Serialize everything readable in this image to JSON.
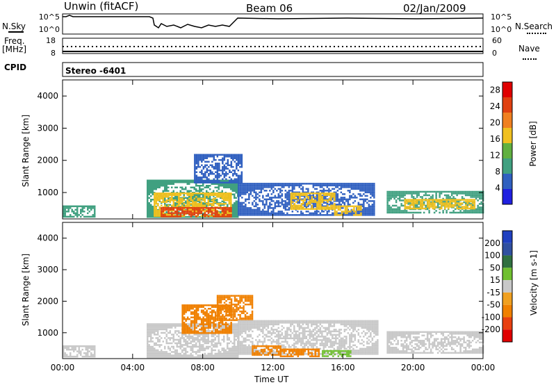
{
  "header": {
    "station": "Unwin (fitACF)",
    "beam": "Beam 06",
    "date": "02/Jan/2009"
  },
  "top_panel": {
    "nsky_label": "N.Sky",
    "nsearch_label": "N.Search",
    "freq_label": "Freq.",
    "freq_unit": "[MHz]",
    "nave_label": "Nave",
    "cpid_label": "CPID",
    "cpid_value": "Stereo -6401",
    "left_ticks_noise": [
      "10^5",
      "10^0"
    ],
    "right_ticks_noise": [
      "10^5",
      "10^0"
    ],
    "left_ticks_freq": [
      "18",
      "8"
    ],
    "right_ticks_nave": [
      "60",
      "0"
    ]
  },
  "colors": {
    "power_scale": [
      "#2020e0",
      "#3060c0",
      "#40a080",
      "#60b040",
      "#f0c020",
      "#f08020",
      "#e04010",
      "#e00000"
    ],
    "velocity_scale": [
      "#2040c0",
      "#3050a0",
      "#307040",
      "#70c030",
      "#c8c8c8",
      "#f0a020",
      "#f08000",
      "#e84010",
      "#e00000"
    ]
  },
  "chart_data": [
    {
      "type": "heatmap",
      "title": "",
      "xlabel": "",
      "ylabel": "Slant Range [km]",
      "xlim": [
        "00:00",
        "00:00"
      ],
      "ylim": [
        180,
        4500
      ],
      "yticks": [
        1000,
        2000,
        3000,
        4000
      ],
      "colorbar_label": "Power [dB]",
      "colorbar_ticks": [
        4,
        8,
        12,
        16,
        20,
        24,
        28
      ],
      "colorbar_range": [
        0,
        30
      ],
      "regions": [
        {
          "t0": 0.0,
          "t1": 1.8,
          "r0": 250,
          "r1": 600,
          "value": 10
        },
        {
          "t0": 4.8,
          "t1": 10.0,
          "r0": 250,
          "r1": 1400,
          "value": 8
        },
        {
          "t0": 5.2,
          "t1": 9.6,
          "r0": 250,
          "r1": 1000,
          "value": 16
        },
        {
          "t0": 5.6,
          "t1": 9.6,
          "r0": 250,
          "r1": 550,
          "value": 26
        },
        {
          "t0": 7.5,
          "t1": 10.2,
          "r0": 1300,
          "r1": 2200,
          "value": 6
        },
        {
          "t0": 10.0,
          "t1": 17.8,
          "r0": 300,
          "r1": 1300,
          "value": 7
        },
        {
          "t0": 13.0,
          "t1": 15.5,
          "r0": 500,
          "r1": 1000,
          "value": 16
        },
        {
          "t0": 15.5,
          "t1": 17.0,
          "r0": 300,
          "r1": 600,
          "value": 18
        },
        {
          "t0": 18.5,
          "t1": 24.0,
          "r0": 350,
          "r1": 1050,
          "value": 9
        },
        {
          "t0": 19.5,
          "t1": 23.5,
          "r0": 500,
          "r1": 800,
          "value": 18
        }
      ]
    },
    {
      "type": "heatmap",
      "title": "",
      "xlabel": "Time UT",
      "ylabel": "Slant Range [km]",
      "xticks": [
        "00:00",
        "04:00",
        "08:00",
        "12:00",
        "16:00",
        "20:00",
        "00:00"
      ],
      "ylim": [
        180,
        4500
      ],
      "yticks": [
        1000,
        2000,
        3000,
        4000
      ],
      "colorbar_label": "Velocity [m s-1]",
      "colorbar_ticks": [
        "200",
        "100",
        "50",
        "15",
        "-15",
        "-50",
        "-100",
        "-200"
      ],
      "regions": [
        {
          "t0": 0.0,
          "t1": 1.8,
          "r0": 250,
          "r1": 600,
          "value": 0
        },
        {
          "t0": 4.8,
          "t1": 10.0,
          "r0": 250,
          "r1": 1300,
          "value": 0
        },
        {
          "t0": 6.8,
          "t1": 9.6,
          "r0": 1000,
          "r1": 1900,
          "value": -60
        },
        {
          "t0": 8.8,
          "t1": 10.8,
          "r0": 1400,
          "r1": 2200,
          "value": -60
        },
        {
          "t0": 10.0,
          "t1": 18.0,
          "r0": 300,
          "r1": 1400,
          "value": 0
        },
        {
          "t0": 10.8,
          "t1": 12.4,
          "r0": 300,
          "r1": 600,
          "value": -60
        },
        {
          "t0": 12.4,
          "t1": 14.6,
          "r0": 250,
          "r1": 500,
          "value": -60
        },
        {
          "t0": 14.8,
          "t1": 16.4,
          "r0": 250,
          "r1": 450,
          "value": 60
        },
        {
          "t0": 18.5,
          "t1": 24.0,
          "r0": 350,
          "r1": 1050,
          "value": 0
        }
      ]
    }
  ]
}
